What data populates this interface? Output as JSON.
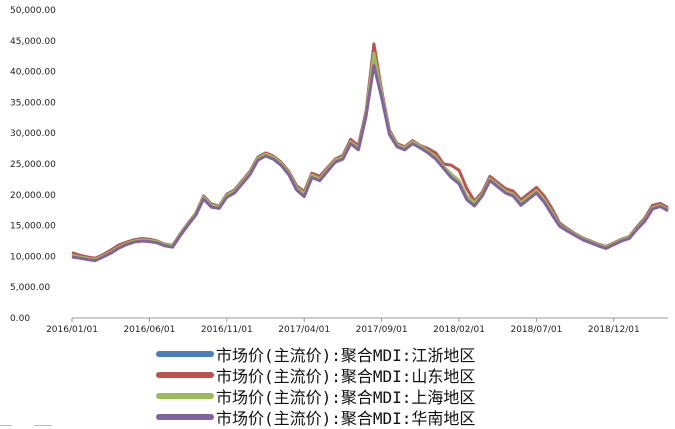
{
  "chart_data": {
    "type": "line",
    "title": "",
    "xlabel": "",
    "ylabel": "",
    "ylim": [
      0,
      50000
    ],
    "yticks": [
      "0.00",
      "5,000.00",
      "10,000.00",
      "15,000.00",
      "20,000.00",
      "25,000.00",
      "30,000.00",
      "35,000.00",
      "40,000.00",
      "45,000.00",
      "50,000.00"
    ],
    "xticks": [
      "2016/01/01",
      "2016/06/01",
      "2016/11/01",
      "2017/04/01",
      "2017/09/01",
      "2018/02/01",
      "2018/07/01",
      "2018/12/01"
    ],
    "grid": false,
    "legend_position": "bottom",
    "x": [
      "2016/01/01",
      "2016/01/15",
      "2016/02/01",
      "2016/02/15",
      "2016/03/01",
      "2016/03/15",
      "2016/04/01",
      "2016/04/15",
      "2016/05/01",
      "2016/05/15",
      "2016/06/01",
      "2016/06/15",
      "2016/07/01",
      "2016/07/15",
      "2016/08/01",
      "2016/08/15",
      "2016/09/01",
      "2016/09/15",
      "2016/10/01",
      "2016/10/15",
      "2016/11/01",
      "2016/11/15",
      "2016/12/01",
      "2016/12/15",
      "2017/01/01",
      "2017/01/15",
      "2017/02/01",
      "2017/02/15",
      "2017/03/01",
      "2017/03/15",
      "2017/04/01",
      "2017/04/15",
      "2017/05/01",
      "2017/05/15",
      "2017/06/01",
      "2017/06/15",
      "2017/07/01",
      "2017/07/15",
      "2017/08/01",
      "2017/08/15",
      "2017/09/01",
      "2017/09/15",
      "2017/10/01",
      "2017/10/15",
      "2017/11/01",
      "2017/11/15",
      "2017/12/01",
      "2017/12/15",
      "2018/01/01",
      "2018/01/15",
      "2018/02/01",
      "2018/02/15",
      "2018/03/01",
      "2018/03/15",
      "2018/04/01",
      "2018/04/15",
      "2018/05/01",
      "2018/05/15",
      "2018/06/01",
      "2018/06/15",
      "2018/07/01",
      "2018/07/15",
      "2018/08/01",
      "2018/08/15",
      "2018/09/01",
      "2018/09/15",
      "2018/10/01",
      "2018/10/15",
      "2018/11/01",
      "2018/11/15",
      "2018/12/01",
      "2018/12/15",
      "2019/01/01",
      "2019/01/15",
      "2019/02/01",
      "2019/02/15",
      "2019/03/01",
      "2019/03/15"
    ],
    "series": [
      {
        "name": "市场价(主流价):聚合MDI:江浙地区",
        "color": "#4a7ebb",
        "values": [
          10000,
          9800,
          9600,
          9400,
          10000,
          10600,
          11400,
          12000,
          12400,
          12600,
          12500,
          12300,
          11800,
          11600,
          13500,
          15200,
          16800,
          19500,
          18200,
          18000,
          19800,
          20500,
          22000,
          23500,
          25800,
          26500,
          26000,
          25000,
          23500,
          21000,
          20000,
          23000,
          22500,
          24000,
          25500,
          26000,
          28500,
          27500,
          33000,
          42000,
          36000,
          30000,
          28000,
          27500,
          28500,
          27800,
          27000,
          26000,
          24500,
          23000,
          22000,
          19500,
          18500,
          20000,
          22500,
          21500,
          20500,
          20000,
          18500,
          19500,
          20500,
          19000,
          17000,
          15000,
          14200,
          13500,
          12800,
          12300,
          11800,
          11400,
          12000,
          12600,
          13000,
          14500,
          15800,
          17800,
          18200,
          17500
        ]
      },
      {
        "name": "市场价(主流价):聚合MDI:山东地区",
        "color": "#c0504d",
        "values": [
          10600,
          10200,
          9900,
          9700,
          10300,
          11000,
          11800,
          12300,
          12700,
          12900,
          12800,
          12500,
          12000,
          11800,
          13700,
          15400,
          17000,
          19800,
          18500,
          18200,
          20100,
          20800,
          22300,
          23800,
          26100,
          26800,
          26300,
          25300,
          23800,
          21500,
          20500,
          23500,
          23000,
          24400,
          25800,
          26400,
          29000,
          28000,
          33600,
          44500,
          37000,
          30500,
          28300,
          27800,
          28800,
          28000,
          27500,
          26800,
          25000,
          24800,
          24000,
          21000,
          19000,
          20400,
          23000,
          22000,
          21000,
          20600,
          19200,
          20200,
          21200,
          19800,
          17800,
          15400,
          14500,
          13700,
          13000,
          12500,
          12000,
          11600,
          12200,
          12800,
          13200,
          14800,
          16200,
          18300,
          18600,
          17900
        ]
      },
      {
        "name": "市场价(主流价):聚合MDI:上海地区",
        "color": "#9bbb59",
        "values": [
          10200,
          9900,
          9700,
          9500,
          10100,
          10700,
          11500,
          12100,
          12500,
          12700,
          12600,
          12400,
          11900,
          11700,
          13600,
          15300,
          16900,
          19600,
          18300,
          18100,
          19900,
          20600,
          22100,
          23600,
          25900,
          26600,
          26100,
          25100,
          23600,
          21200,
          20200,
          23200,
          22600,
          24100,
          25600,
          26100,
          28600,
          27600,
          33200,
          43000,
          36500,
          30200,
          28100,
          27600,
          28600,
          27900,
          27100,
          26200,
          24600,
          23400,
          22300,
          19800,
          18700,
          20100,
          22600,
          21600,
          20600,
          20100,
          18700,
          19700,
          20700,
          19200,
          17200,
          15100,
          14300,
          13600,
          12900,
          12400,
          11900,
          11500,
          12100,
          12700,
          13100,
          14600,
          15900,
          17900,
          18300,
          17600
        ]
      },
      {
        "name": "市场价(主流价):聚合MDI:华南地区",
        "color": "#8064a2",
        "values": [
          9900,
          9700,
          9500,
          9300,
          9900,
          10500,
          11300,
          11900,
          12300,
          12500,
          12400,
          12200,
          11700,
          11500,
          13400,
          15100,
          16700,
          19300,
          18000,
          17800,
          19600,
          20300,
          21800,
          23300,
          25600,
          26300,
          25800,
          24800,
          23300,
          20800,
          19700,
          22800,
          22300,
          23800,
          25300,
          25800,
          28300,
          27300,
          32800,
          41000,
          35800,
          29800,
          27800,
          27300,
          28300,
          27600,
          26800,
          25800,
          24300,
          22800,
          21800,
          19200,
          18200,
          19800,
          22300,
          21300,
          20300,
          19800,
          18300,
          19300,
          20300,
          18800,
          16800,
          14900,
          14100,
          13400,
          12700,
          12200,
          11700,
          11300,
          11900,
          12500,
          12900,
          14400,
          15700,
          17700,
          18100,
          17400
        ]
      }
    ]
  }
}
